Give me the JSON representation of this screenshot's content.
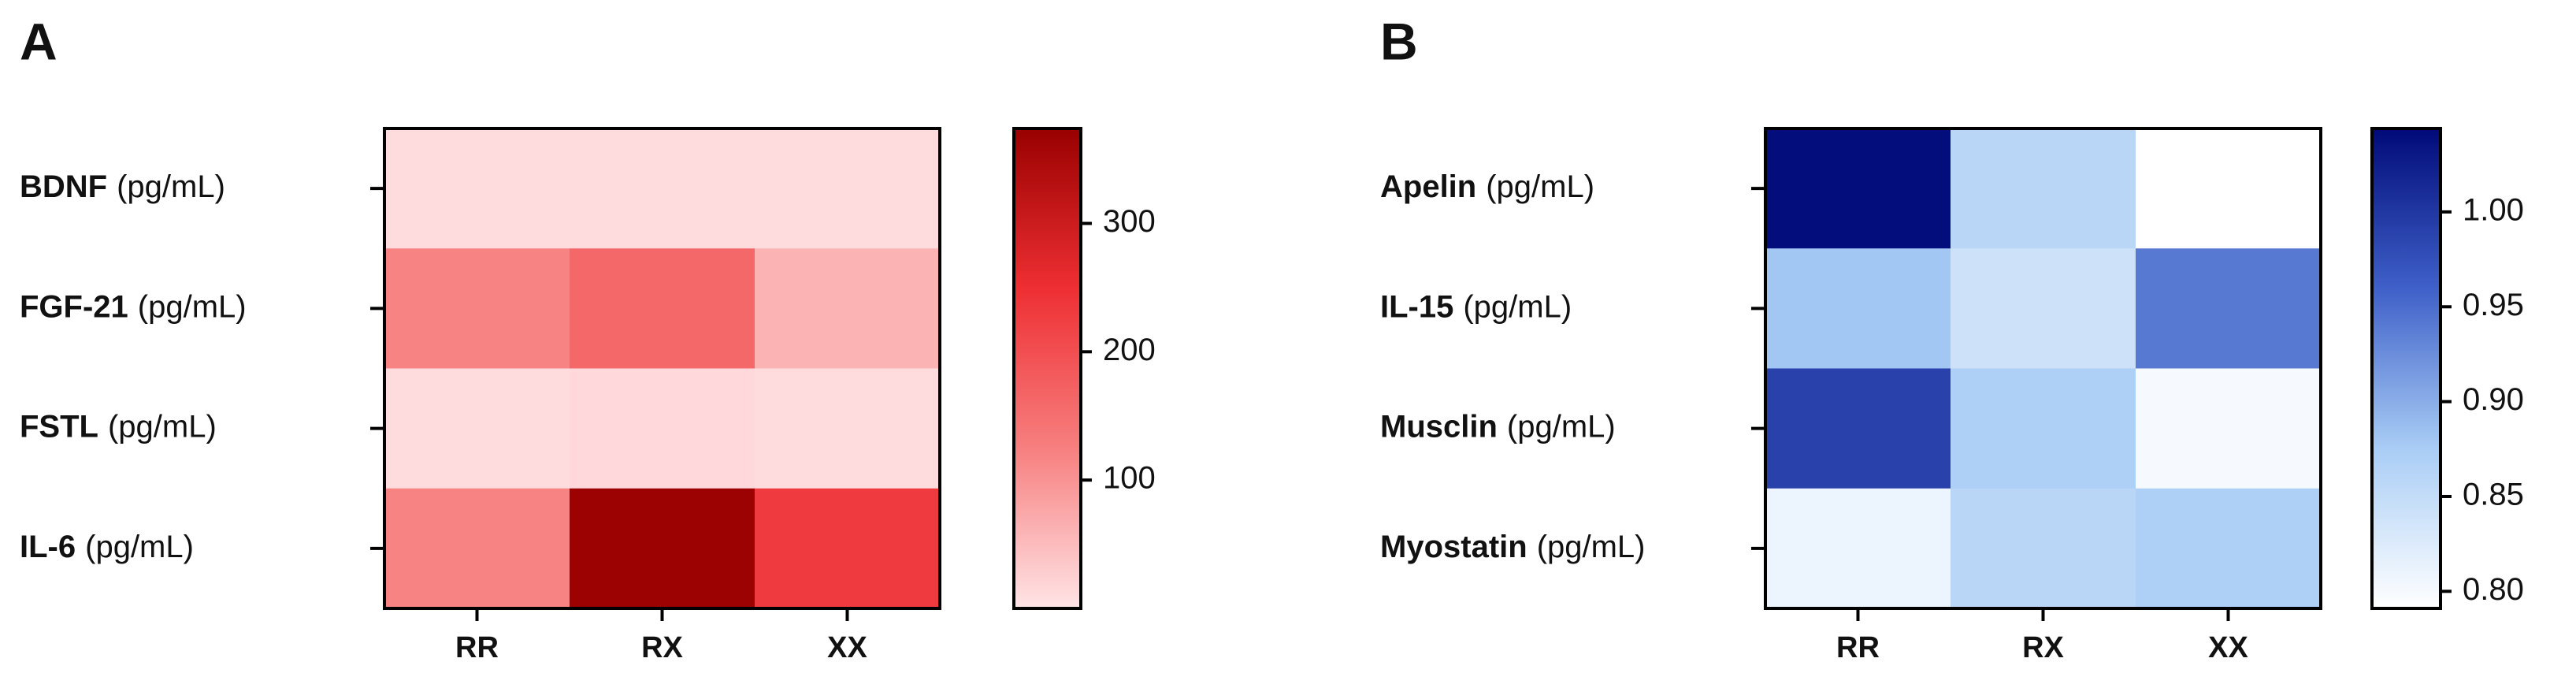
{
  "chart_data": [
    {
      "type": "heatmap",
      "panel_label": "A",
      "rows": [
        {
          "name": "BDNF",
          "unit": "(pg/mL)"
        },
        {
          "name": "FGF-21",
          "unit": "(pg/mL)"
        },
        {
          "name": "FSTL",
          "unit": "(pg/mL)"
        },
        {
          "name": "IL-6",
          "unit": "(pg/mL)"
        }
      ],
      "columns": [
        "RR",
        "RX",
        "XX"
      ],
      "values": [
        [
          10,
          10,
          10
        ],
        [
          120,
          160,
          60
        ],
        [
          10,
          15,
          10
        ],
        [
          120,
          370,
          230
        ]
      ],
      "colorscale": [
        "#ffe4e6",
        "#f77f7f",
        "#ee2f33",
        "#990000"
      ],
      "clim": [
        0,
        374
      ],
      "cticks": [
        100,
        200,
        300
      ]
    },
    {
      "type": "heatmap",
      "panel_label": "B",
      "rows": [
        {
          "name": "Apelin",
          "unit": "(pg/mL)"
        },
        {
          "name": "IL-15",
          "unit": "(pg/mL)"
        },
        {
          "name": "Musclin",
          "unit": "(pg/mL)"
        },
        {
          "name": "Myostatin",
          "unit": "(pg/mL)"
        }
      ],
      "columns": [
        "RR",
        "RX",
        "XX"
      ],
      "values": [
        [
          1.04,
          0.86,
          0.79
        ],
        [
          0.88,
          0.84,
          0.94
        ],
        [
          0.99,
          0.87,
          0.8
        ],
        [
          0.81,
          0.86,
          0.87
        ]
      ],
      "colorscale": [
        "#ffffff",
        "#a9cdf5",
        "#3f60c8",
        "#000a78"
      ],
      "clim": [
        0.791,
        1.044
      ],
      "cticks": [
        {
          "value": 0.8,
          "label": "0.80"
        },
        {
          "value": 0.85,
          "label": "0.85"
        },
        {
          "value": 0.9,
          "label": "0.90"
        },
        {
          "value": 0.95,
          "label": "0.95"
        },
        {
          "value": 1.0,
          "label": "1.00"
        }
      ]
    }
  ]
}
